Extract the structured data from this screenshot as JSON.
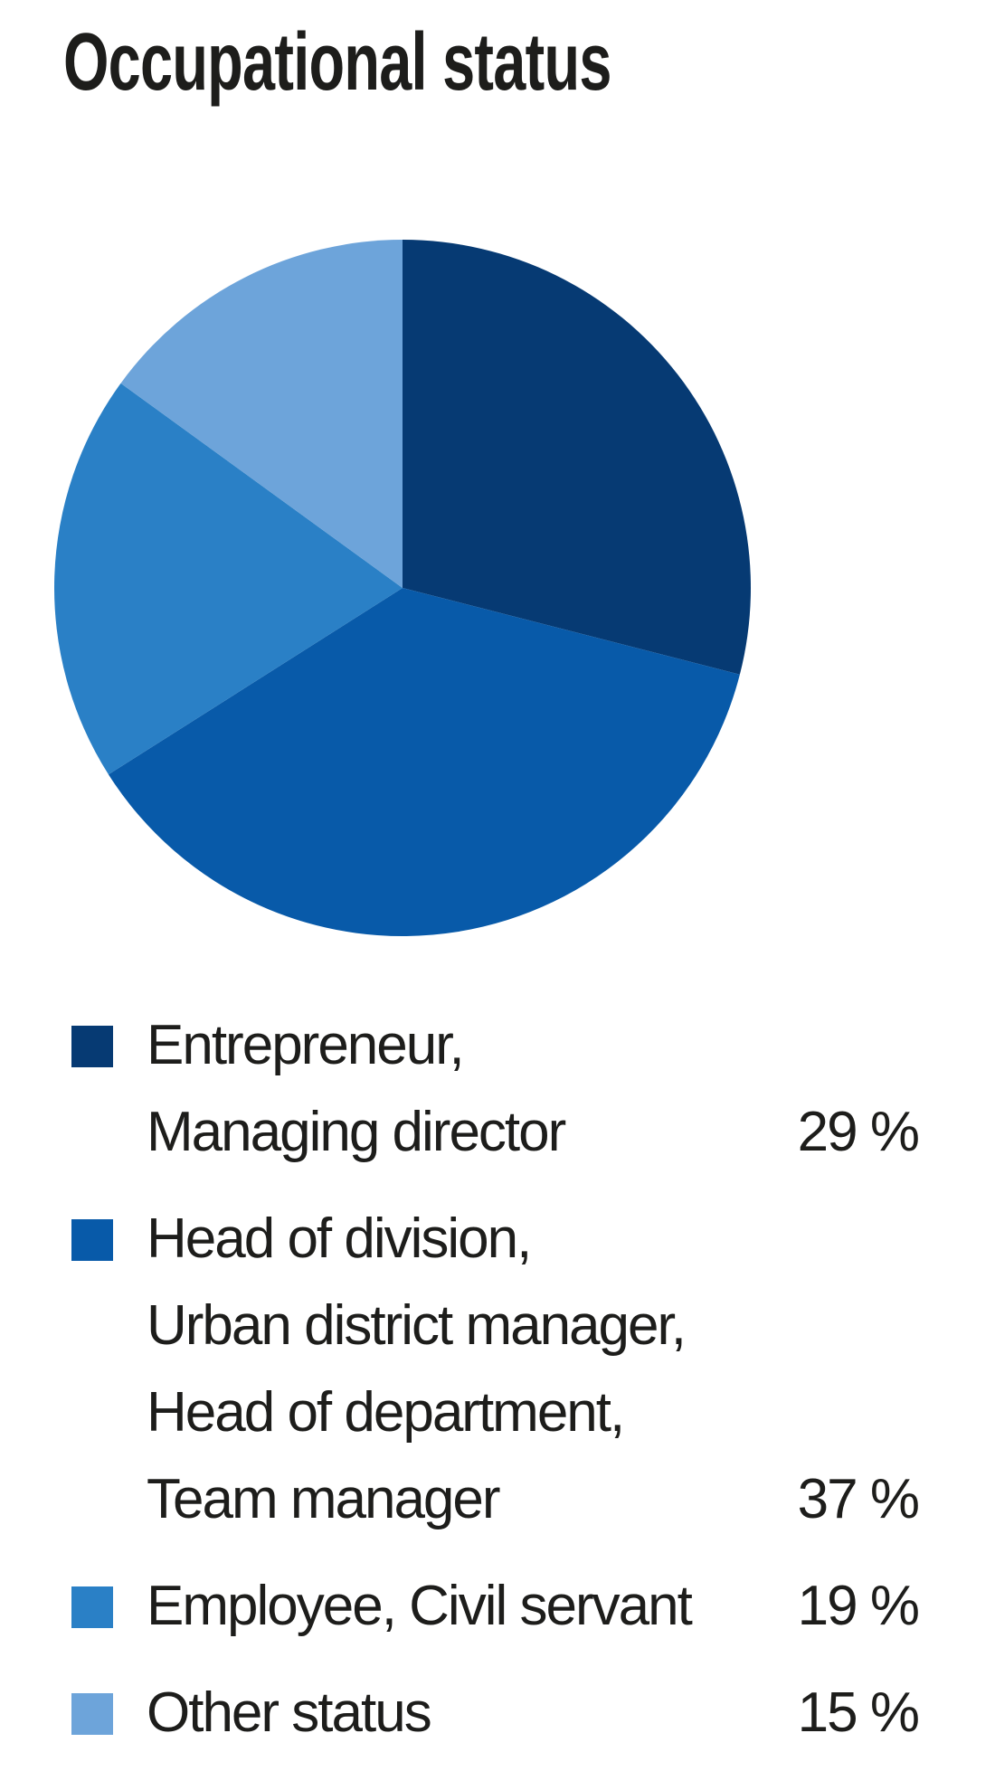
{
  "title": "Occupational status",
  "chart_data": {
    "type": "pie",
    "title": "Occupational status",
    "labels": [
      "Entrepreneur, Managing director",
      "Head of division, Urban district manager, Head of department, Team manager",
      "Employee, Civil servant",
      "Other status"
    ],
    "values": [
      29,
      37,
      19,
      15
    ],
    "unit": "%",
    "colors": [
      "#063a73",
      "#085aa9",
      "#2a80c6",
      "#6da4da"
    ],
    "start_angle_deg": 0,
    "direction": "clockwise",
    "legend_position": "bottom",
    "data_labels_on_slices": false
  },
  "legend": {
    "items": [
      {
        "lines": [
          "Entrepreneur,",
          "Managing director"
        ],
        "value": "29 %"
      },
      {
        "lines": [
          "Head of division,",
          "Urban district manager,",
          "Head of department,",
          "Team manager"
        ],
        "value": "37 %"
      },
      {
        "lines": [
          "Employee, Civil servant"
        ],
        "value": "19 %"
      },
      {
        "lines": [
          "Other status"
        ],
        "value": "15 %"
      }
    ]
  }
}
